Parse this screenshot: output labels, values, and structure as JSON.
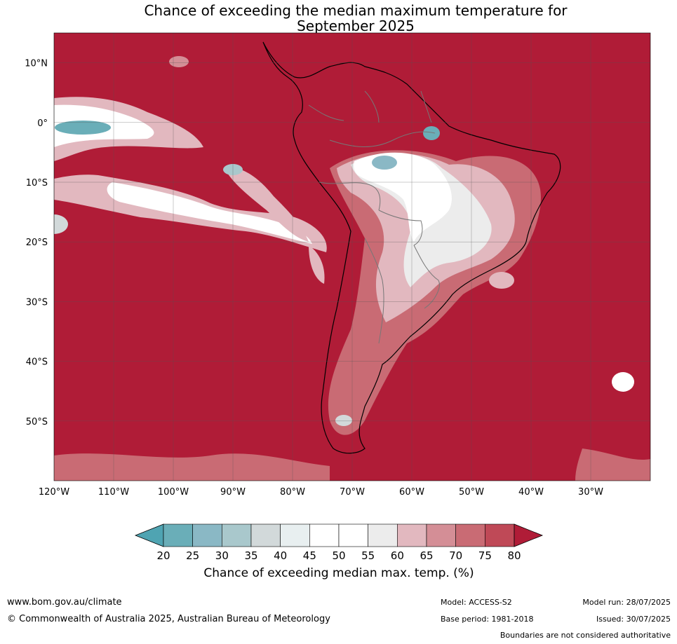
{
  "title_line1": "Chance of exceeding the median maximum temperature for",
  "title_line2": "September 2025",
  "lat_labels": [
    "10°N",
    "0°",
    "10°S",
    "20°S",
    "30°S",
    "40°S",
    "50°S"
  ],
  "lat_values": [
    10,
    0,
    -10,
    -20,
    -30,
    -40,
    -50
  ],
  "lon_labels": [
    "120°W",
    "110°W",
    "100°W",
    "90°W",
    "80°W",
    "70°W",
    "60°W",
    "50°W",
    "40°W",
    "30°W"
  ],
  "lon_values": [
    -120,
    -110,
    -100,
    -90,
    -80,
    -70,
    -60,
    -50,
    -40,
    -30
  ],
  "map_extent": {
    "lon_min": -120,
    "lon_max": -20,
    "lat_min": -60,
    "lat_max": 15
  },
  "colorbar": {
    "ticks": [
      "20",
      "25",
      "30",
      "35",
      "40",
      "45",
      "50",
      "55",
      "60",
      "65",
      "70",
      "75",
      "80"
    ],
    "colors": [
      "#6aaeb8",
      "#8ab8c5",
      "#a9c8cc",
      "#d2d9da",
      "#e8eff0",
      "#ffffff",
      "#ffffff",
      "#ececec",
      "#e2b8bf",
      "#d48e96",
      "#c96b74",
      "#bf4957",
      "#b01c37"
    ],
    "low_extend_color": "#4fa4b2",
    "high_extend_color": "#b01c37",
    "label": "Chance of exceeding median max. temp. (%)"
  },
  "footer": {
    "site": "www.bom.gov.au/climate",
    "copyright": "© Commonwealth of Australia 2025, Australian Bureau of Meteorology",
    "model": "Model: ACCESS-S2",
    "base_period": "Base period: 1981-2018",
    "model_run": "Model run: 28/07/2025",
    "issued": "Issued: 30/07/2025",
    "disclaimer": "Boundaries are not considered authoritative"
  }
}
